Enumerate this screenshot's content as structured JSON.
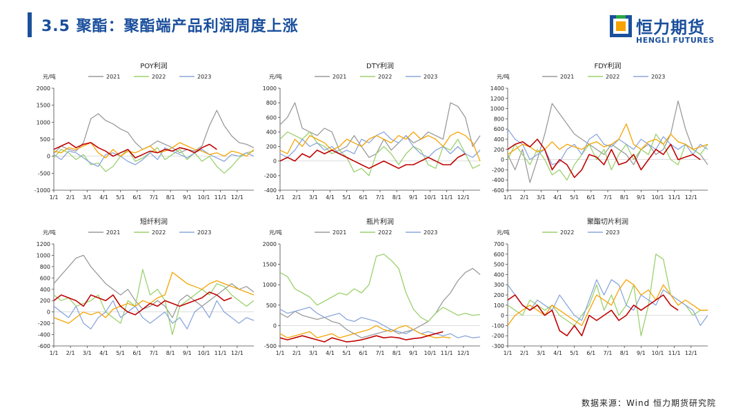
{
  "header": {
    "title": "3.5 聚酯：聚酯端产品利润周度上涨",
    "logo_cn": "恒力期货",
    "logo_en": "HENGLI FUTURES"
  },
  "footer": {
    "source": "数据来源：Wind  恒力期货研究院"
  },
  "colors": {
    "2021": "#9a9a9a",
    "2022": "#9bd06d",
    "2023": "#8aa6dc",
    "2024": "#f5a300",
    "2025": "#c00000",
    "brand": "#1a4f9c"
  },
  "chart_data": [
    {
      "type": "line",
      "title": "POY利润",
      "unit": "元/吨",
      "ylim": [
        -1000,
        2000
      ],
      "yticks": [
        -1000,
        -500,
        0,
        500,
        1000,
        1500,
        2000
      ],
      "xticks": [
        "1/1",
        "2/1",
        "3/1",
        "4/1",
        "5/1",
        "6/1",
        "7/1",
        "8/1",
        "9/1",
        "10/1",
        "11/1",
        "12/1"
      ],
      "series": [
        {
          "name": "2021",
          "legend": true,
          "values": [
            80,
            300,
            200,
            150,
            400,
            1100,
            1250,
            1050,
            950,
            800,
            700,
            400,
            200,
            300,
            450,
            350,
            250,
            100,
            200,
            150,
            300,
            900,
            1350,
            900,
            600,
            400,
            350,
            250
          ]
        },
        {
          "name": "2022",
          "legend": true,
          "values": [
            -50,
            200,
            100,
            -100,
            50,
            -250,
            -200,
            -450,
            -300,
            0,
            200,
            -150,
            -50,
            100,
            250,
            -100,
            50,
            200,
            -100,
            100,
            -150,
            0,
            -300,
            -500,
            -300,
            -50,
            100,
            150
          ]
        },
        {
          "name": "2023",
          "legend": true,
          "values": [
            50,
            -100,
            150,
            100,
            -50,
            -200,
            -300,
            50,
            100,
            0,
            -150,
            -250,
            -100,
            100,
            -100,
            250,
            150,
            50,
            -50,
            100,
            200,
            50,
            -50,
            -150,
            50,
            0,
            100,
            0
          ]
        },
        {
          "name": "2024",
          "legend": false,
          "values": [
            150,
            100,
            250,
            200,
            300,
            400,
            100,
            -50,
            200,
            0,
            150,
            100,
            200,
            300,
            100,
            150,
            250,
            400,
            300,
            200,
            150,
            50,
            100,
            0,
            150,
            100,
            0,
            200
          ]
        },
        {
          "name": "2025",
          "legend": false,
          "values": [
            200,
            300,
            400,
            250,
            350,
            400,
            250,
            150,
            0,
            100,
            200,
            -50,
            50,
            150,
            100,
            200,
            150,
            250,
            200,
            100,
            250,
            350,
            200
          ]
        }
      ]
    },
    {
      "type": "line",
      "title": "DTY利润",
      "unit": "元/吨",
      "ylim": [
        -400,
        1000
      ],
      "yticks": [
        -400,
        -200,
        0,
        200,
        400,
        600,
        800,
        1000
      ],
      "xticks": [
        "1/1",
        "2/1",
        "3/1",
        "4/1",
        "5/1",
        "6/1",
        "7/1",
        "8/1",
        "9/1",
        "10/1",
        "11/1",
        "12/1"
      ],
      "series": [
        {
          "name": "2021",
          "legend": true,
          "values": [
            500,
            600,
            800,
            450,
            400,
            350,
            450,
            400,
            150,
            200,
            350,
            200,
            50,
            100,
            300,
            150,
            250,
            350,
            250,
            300,
            400,
            350,
            300,
            800,
            750,
            600,
            200,
            350
          ]
        },
        {
          "name": "2022",
          "legend": true,
          "values": [
            300,
            400,
            350,
            300,
            400,
            250,
            200,
            100,
            150,
            50,
            -150,
            -100,
            -200,
            100,
            200,
            100,
            -50,
            100,
            200,
            150,
            -50,
            -100,
            200,
            150,
            300,
            100,
            -100,
            -50
          ]
        },
        {
          "name": "2023",
          "legend": true,
          "values": [
            100,
            50,
            150,
            300,
            200,
            250,
            150,
            200,
            100,
            150,
            100,
            300,
            250,
            350,
            400,
            300,
            250,
            350,
            200,
            100,
            50,
            150,
            200,
            100,
            200,
            100,
            50,
            150
          ]
        },
        {
          "name": "2024",
          "legend": false,
          "values": [
            150,
            100,
            300,
            200,
            350,
            300,
            250,
            150,
            200,
            300,
            250,
            200,
            300,
            350,
            300,
            250,
            350,
            300,
            400,
            300,
            350,
            300,
            200,
            350,
            400,
            350,
            250,
            0
          ]
        },
        {
          "name": "2025",
          "legend": false,
          "values": [
            0,
            50,
            0,
            100,
            50,
            150,
            100,
            150,
            100,
            50,
            0,
            -50,
            -100,
            -50,
            0,
            -50,
            -100,
            -50,
            -50,
            0,
            50,
            0,
            -50,
            -50,
            50,
            100
          ]
        }
      ]
    },
    {
      "type": "line",
      "title": "FDY利润",
      "unit": "元/吨",
      "ylim": [
        -600,
        1400
      ],
      "yticks": [
        -600,
        -400,
        -200,
        0,
        200,
        400,
        600,
        800,
        1000,
        1200,
        1400
      ],
      "xticks": [
        "1/1",
        "2/1",
        "3/1",
        "4/1",
        "5/1",
        "6/1",
        "7/1",
        "8/1",
        "9/1",
        "10/1",
        "11/1",
        "12/1"
      ],
      "series": [
        {
          "name": "2021",
          "legend": true,
          "values": [
            100,
            -200,
            200,
            -450,
            0,
            500,
            1100,
            900,
            700,
            500,
            400,
            300,
            200,
            100,
            300,
            200,
            100,
            -100,
            200,
            300,
            100,
            200,
            500,
            1150,
            600,
            200,
            100,
            -100
          ]
        },
        {
          "name": "2022",
          "legend": true,
          "values": [
            0,
            300,
            100,
            -100,
            200,
            0,
            -300,
            -200,
            -400,
            -100,
            100,
            300,
            0,
            200,
            -200,
            100,
            300,
            0,
            200,
            100,
            500,
            300,
            0,
            -100,
            300,
            200,
            100,
            300
          ]
        },
        {
          "name": "2023",
          "legend": true,
          "values": [
            600,
            400,
            300,
            0,
            100,
            200,
            -100,
            -50,
            200,
            300,
            100,
            400,
            500,
            300,
            250,
            400,
            300,
            200,
            400,
            300,
            200,
            450,
            300,
            200,
            300,
            100,
            300,
            200
          ]
        },
        {
          "name": "2024",
          "legend": false,
          "values": [
            100,
            200,
            300,
            250,
            150,
            200,
            350,
            200,
            300,
            250,
            200,
            300,
            350,
            250,
            300,
            400,
            700,
            300,
            200,
            350,
            400,
            300,
            500,
            350,
            300,
            200,
            250,
            300
          ]
        },
        {
          "name": "2025",
          "legend": false,
          "values": [
            200,
            300,
            350,
            250,
            400,
            200,
            -200,
            0,
            -100,
            -350,
            -200,
            100,
            50,
            -100,
            200,
            -100,
            -50,
            100,
            -200,
            0,
            200,
            100,
            300,
            0,
            50,
            100,
            0
          ]
        }
      ]
    },
    {
      "type": "line",
      "title": "短纤利润",
      "unit": "元/吨",
      "ylim": [
        -600,
        1200
      ],
      "yticks": [
        -600,
        -400,
        -200,
        0,
        200,
        400,
        600,
        800,
        1000,
        1200
      ],
      "xticks": [
        "1/1",
        "2/1",
        "3/1",
        "4/1",
        "5/1",
        "6/1",
        "7/1",
        "8/1",
        "9/1",
        "10/1",
        "11/1",
        "12/1"
      ],
      "series": [
        {
          "name": "2021",
          "legend": true,
          "values": [
            500,
            650,
            800,
            950,
            1000,
            800,
            650,
            500,
            400,
            300,
            400,
            200,
            50,
            100,
            200,
            100,
            -100,
            200,
            300,
            200,
            100,
            200,
            300,
            400,
            500,
            400,
            450,
            350
          ]
        },
        {
          "name": "2022",
          "legend": true,
          "values": [
            300,
            200,
            250,
            100,
            150,
            200,
            300,
            0,
            -100,
            -200,
            200,
            100,
            750,
            300,
            400,
            200,
            -400,
            100,
            200,
            300,
            400,
            300,
            500,
            450,
            300,
            200,
            100,
            200
          ]
        },
        {
          "name": "2023",
          "legend": true,
          "values": [
            100,
            0,
            -100,
            100,
            -200,
            -300,
            -100,
            0,
            200,
            -100,
            0,
            100,
            -100,
            -200,
            -100,
            0,
            -200,
            -100,
            -300,
            0,
            100,
            -100,
            200,
            0,
            -100,
            -200,
            -100,
            -150
          ]
        },
        {
          "name": "2024",
          "legend": false,
          "values": [
            -100,
            -150,
            -200,
            -100,
            0,
            -50,
            0,
            -100,
            50,
            100,
            150,
            100,
            200,
            150,
            250,
            300,
            700,
            600,
            500,
            450,
            400,
            500,
            550,
            500,
            450,
            400,
            350,
            300
          ]
        },
        {
          "name": "2025",
          "legend": false,
          "values": [
            200,
            300,
            250,
            200,
            100,
            300,
            250,
            200,
            300,
            100,
            0,
            -50,
            50,
            150,
            100,
            200,
            150,
            100,
            150,
            200,
            250,
            350,
            300,
            200,
            250
          ]
        }
      ]
    },
    {
      "type": "line",
      "title": "瓶片利润",
      "unit": "元/吨",
      "ylim": [
        -500,
        2000
      ],
      "yticks": [
        -500,
        0,
        500,
        1000,
        1500,
        2000
      ],
      "xticks": [
        "1/1",
        "2/1",
        "3/1",
        "4/1",
        "5/1",
        "6/1",
        "7/1",
        "8/1",
        "9/1",
        "10/1",
        "11/1",
        "12/1"
      ],
      "series": [
        {
          "name": "2021",
          "legend": true,
          "values": [
            300,
            200,
            350,
            250,
            200,
            150,
            200,
            100,
            50,
            -100,
            -200,
            -300,
            -250,
            -200,
            -150,
            -100,
            -200,
            -150,
            -100,
            0,
            100,
            300,
            600,
            800,
            1100,
            1300,
            1400,
            1250
          ]
        },
        {
          "name": "2022",
          "legend": true,
          "values": [
            1300,
            1200,
            900,
            800,
            700,
            500,
            600,
            700,
            800,
            750,
            900,
            800,
            1000,
            1700,
            1750,
            1600,
            1400,
            800,
            400,
            200,
            100,
            300,
            450,
            350,
            250,
            300,
            250,
            270
          ]
        },
        {
          "name": "2023",
          "legend": true,
          "values": [
            400,
            300,
            350,
            400,
            450,
            300,
            200,
            250,
            300,
            150,
            100,
            200,
            150,
            100,
            0,
            -100,
            -150,
            -200,
            -100,
            -200,
            -150,
            -200,
            -250,
            -200,
            -300,
            -250,
            -300,
            -280
          ]
        },
        {
          "name": "2024",
          "legend": false,
          "values": [
            -200,
            -300,
            -250,
            -200,
            -150,
            -300,
            -250,
            -200,
            -300,
            -250,
            -200,
            -150,
            -100,
            0,
            -100,
            -150,
            -50,
            0,
            -100,
            -200,
            -250,
            -300,
            -280,
            -300
          ]
        },
        {
          "name": "2025",
          "legend": false,
          "values": [
            -300,
            -350,
            -300,
            -250,
            -300,
            -350,
            -400,
            -300,
            -350,
            -400,
            -380,
            -350,
            -300,
            -250,
            -300,
            -280,
            -300,
            -350,
            -320,
            -300,
            -250,
            -200,
            -150
          ]
        }
      ]
    },
    {
      "type": "line",
      "title": "聚酯切片利润",
      "unit": "元/吨",
      "ylim": [
        -300,
        700
      ],
      "yticks": [
        -300,
        -200,
        -100,
        0,
        100,
        200,
        300,
        400,
        500,
        600,
        700
      ],
      "xticks": [
        "1/1",
        "2/1",
        "3/1",
        "4/1",
        "5/1",
        "6/1",
        "7/1",
        "8/1",
        "9/1",
        "10/1",
        "11/1",
        "12/1"
      ],
      "series": [
        {
          "name": "2021",
          "legend": false,
          "values": []
        },
        {
          "name": "2022",
          "legend": true,
          "values": [
            100,
            50,
            0,
            150,
            100,
            50,
            100,
            0,
            -50,
            -100,
            0,
            100,
            300,
            50,
            200,
            0,
            100,
            300,
            -200,
            100,
            600,
            550,
            200,
            150,
            100,
            0,
            50,
            50
          ]
        },
        {
          "name": "2023",
          "legend": true,
          "values": [
            300,
            200,
            100,
            50,
            150,
            100,
            50,
            200,
            100,
            0,
            -50,
            150,
            350,
            200,
            350,
            300,
            100,
            50,
            200,
            150,
            100,
            250,
            200,
            150,
            100,
            50,
            -100,
            0
          ]
        },
        {
          "name": "2024",
          "legend": false,
          "values": [
            -100,
            0,
            50,
            100,
            50,
            0,
            100,
            50,
            0,
            -50,
            -100,
            50,
            200,
            150,
            100,
            250,
            350,
            300,
            200,
            250,
            150,
            300,
            200,
            100,
            150,
            100,
            50,
            50
          ]
        },
        {
          "name": "2025",
          "legend": false,
          "values": [
            150,
            200,
            100,
            50,
            100,
            0,
            50,
            -150,
            -200,
            -100,
            -200,
            0,
            -50,
            0,
            50,
            -50,
            0,
            100,
            50,
            100,
            150,
            200,
            100,
            50
          ]
        }
      ]
    }
  ]
}
